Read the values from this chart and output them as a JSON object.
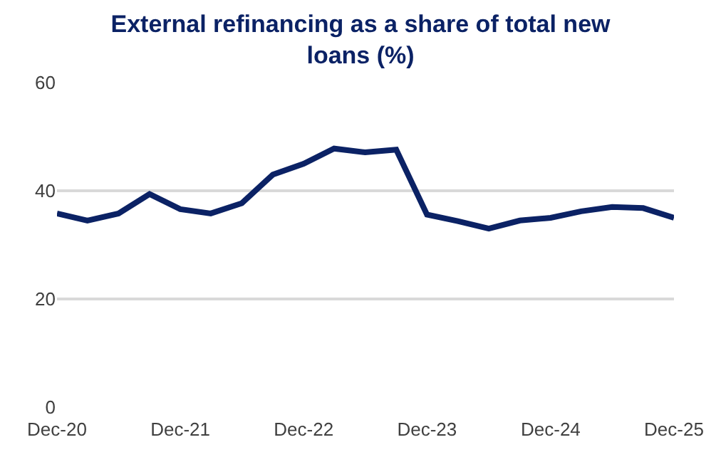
{
  "chart_data": {
    "type": "line",
    "title": "External refinancing as a share of total new loans (%)",
    "x": [
      "2020-12",
      "2021-03",
      "2021-06",
      "2021-09",
      "2021-12",
      "2022-03",
      "2022-06",
      "2022-09",
      "2022-12",
      "2023-03",
      "2023-06",
      "2023-09",
      "2023-12",
      "2024-03",
      "2024-06",
      "2024-09",
      "2024-12",
      "2025-03",
      "2025-06",
      "2025-09",
      "2025-12"
    ],
    "series": [
      {
        "color": "#0b2265",
        "values": [
          35.8,
          34.5,
          35.8,
          39.4,
          36.6,
          35.8,
          37.7,
          43.0,
          45.0,
          47.8,
          47.1,
          47.6,
          35.6,
          34.4,
          33.0,
          34.5,
          35.0,
          36.2,
          37.0,
          36.8,
          35.0
        ]
      }
    ],
    "xlim": [
      "2020-12",
      "2025-12"
    ],
    "xticks": [
      {
        "value": "2020-12",
        "label": "Dec-20"
      },
      {
        "value": "2021-12",
        "label": "Dec-21"
      },
      {
        "value": "2022-12",
        "label": "Dec-22"
      },
      {
        "value": "2023-12",
        "label": "Dec-23"
      },
      {
        "value": "2024-12",
        "label": "Dec-24"
      },
      {
        "value": "2025-12",
        "label": "Dec-25"
      }
    ],
    "ylim": [
      0,
      60
    ],
    "yticks": [
      0,
      20,
      40,
      60
    ],
    "grid": "y",
    "legend": false,
    "marker": "none",
    "line_style": "solid"
  }
}
